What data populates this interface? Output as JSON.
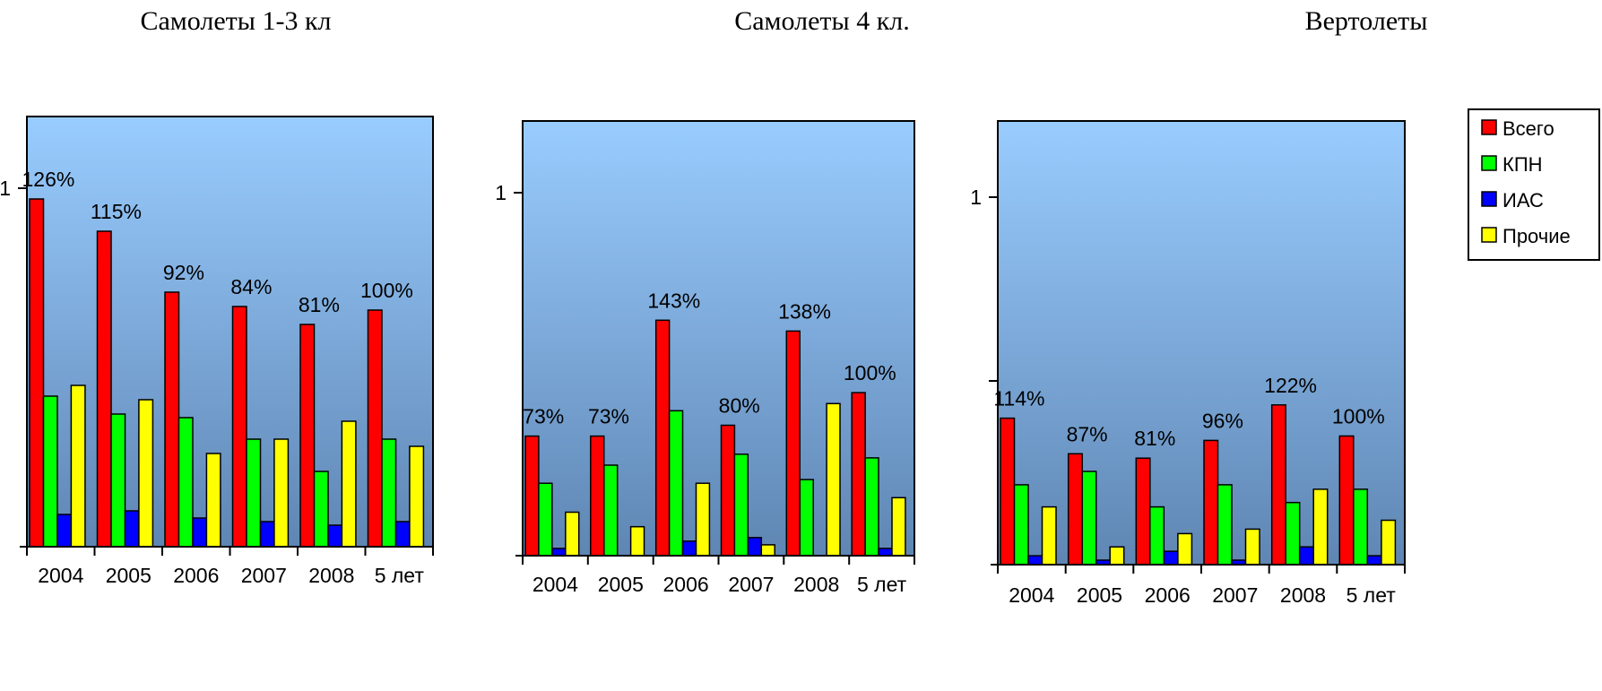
{
  "colors": {
    "Всего": "#ff0000",
    "КПН": "#00ff00",
    "ИАС": "#0000ff",
    "Прочие": "#ffff00",
    "plot_top": "#99ccff",
    "plot_bottom": "#5f86b3"
  },
  "legend": {
    "entries": [
      "Всего",
      "КПН",
      "ИАС",
      "Прочие"
    ],
    "placement": "top-right"
  },
  "chart_data": [
    {
      "type": "bar",
      "title": "Самолеты 1-3 кл",
      "categories": [
        "2004",
        "2005",
        "2006",
        "2007",
        "2008",
        "5 лет"
      ],
      "ylim": [
        0,
        1.2
      ],
      "yticks": [
        "1"
      ],
      "series": [
        {
          "name": "Всего",
          "values": [
            0.97,
            0.88,
            0.71,
            0.67,
            0.62,
            0.66
          ]
        },
        {
          "name": "КПН",
          "values": [
            0.42,
            0.37,
            0.36,
            0.3,
            0.21,
            0.3
          ]
        },
        {
          "name": "ИАС",
          "values": [
            0.09,
            0.1,
            0.08,
            0.07,
            0.06,
            0.07
          ]
        },
        {
          "name": "Прочие",
          "values": [
            0.45,
            0.41,
            0.26,
            0.3,
            0.35,
            0.28
          ]
        }
      ],
      "annotations": [
        "126%",
        "115%",
        "92%",
        "84%",
        "81%",
        "100%"
      ]
    },
    {
      "type": "bar",
      "title": "Самолеты 4 кл.",
      "categories": [
        "2004",
        "2005",
        "2006",
        "2007",
        "2008",
        "5 лет"
      ],
      "ylim": [
        0,
        1.2
      ],
      "yticks": [
        "1"
      ],
      "series": [
        {
          "name": "Всего",
          "values": [
            0.33,
            0.33,
            0.65,
            0.36,
            0.62,
            0.45
          ]
        },
        {
          "name": "КПН",
          "values": [
            0.2,
            0.25,
            0.4,
            0.28,
            0.21,
            0.27
          ]
        },
        {
          "name": "ИАС",
          "values": [
            0.02,
            0.0,
            0.04,
            0.05,
            0.0,
            0.02
          ]
        },
        {
          "name": "Прочие",
          "values": [
            0.12,
            0.08,
            0.2,
            0.03,
            0.42,
            0.16
          ]
        }
      ],
      "annotations": [
        "73%",
        "73%",
        "143%",
        "80%",
        "138%",
        "100%"
      ]
    },
    {
      "type": "bar",
      "title": "Вертолеты",
      "categories": [
        "2004",
        "2005",
        "2006",
        "2007",
        "2008",
        "5 лет"
      ],
      "ylim": [
        0,
        1.0
      ],
      "yticks": [
        "1",
        ""
      ],
      "series": [
        {
          "name": "Всего",
          "values": [
            0.33,
            0.25,
            0.24,
            0.28,
            0.36,
            0.29
          ]
        },
        {
          "name": "КПН",
          "values": [
            0.18,
            0.21,
            0.13,
            0.18,
            0.14,
            0.17
          ]
        },
        {
          "name": "ИАС",
          "values": [
            0.02,
            0.01,
            0.03,
            0.01,
            0.04,
            0.02
          ]
        },
        {
          "name": "Прочие",
          "values": [
            0.13,
            0.04,
            0.07,
            0.08,
            0.17,
            0.1
          ]
        }
      ],
      "annotations": [
        "114%",
        "87%",
        "81%",
        "96%",
        "122%",
        "100%"
      ]
    }
  ]
}
